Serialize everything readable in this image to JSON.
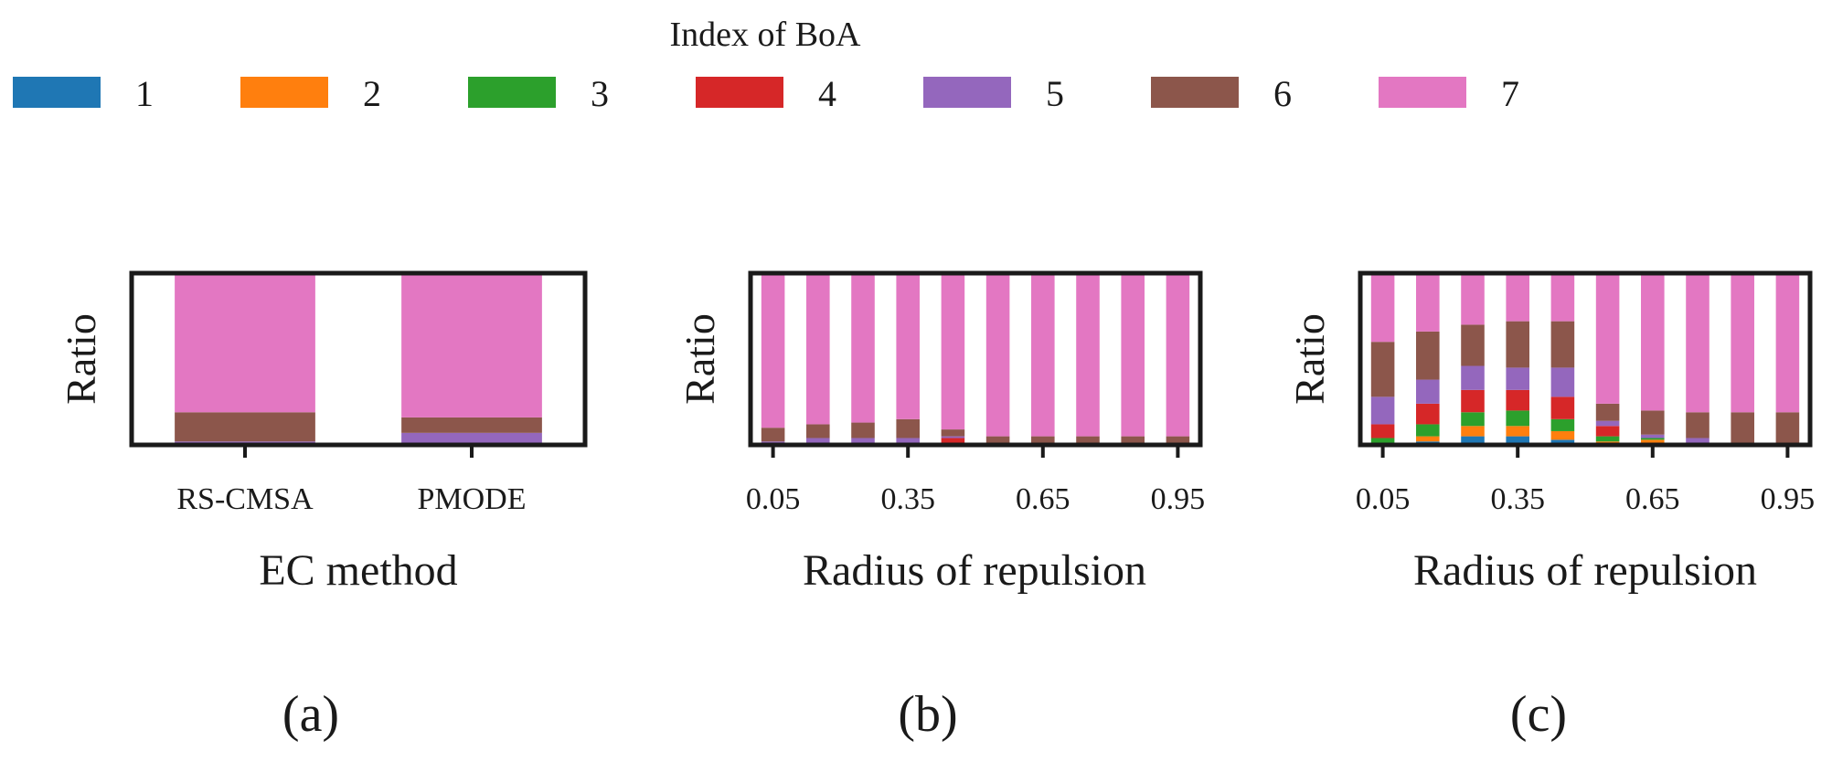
{
  "legend": {
    "title": "Index of BoA",
    "entries": [
      {
        "label": "1",
        "color": "#1f77b4"
      },
      {
        "label": "2",
        "color": "#ff7f0e"
      },
      {
        "label": "3",
        "color": "#2ca02c"
      },
      {
        "label": "4",
        "color": "#d62728"
      },
      {
        "label": "5",
        "color": "#9467bd"
      },
      {
        "label": "6",
        "color": "#8c564b"
      },
      {
        "label": "7",
        "color": "#e377c2"
      }
    ]
  },
  "chart_data": [
    {
      "type": "bar",
      "stacked": true,
      "panel_label": "(a)",
      "title": "",
      "xlabel": "EC method",
      "ylabel": "Ratio",
      "ylim": [
        0,
        1
      ],
      "categories": [
        "RS-CMSA",
        "PMODE"
      ],
      "tick_labels": [
        "RS-CMSA",
        "PMODE"
      ],
      "series": [
        {
          "name": "1",
          "values": [
            0.0,
            0.0
          ]
        },
        {
          "name": "2",
          "values": [
            0.0,
            0.0
          ]
        },
        {
          "name": "3",
          "values": [
            0.0,
            0.0
          ]
        },
        {
          "name": "4",
          "values": [
            0.0,
            0.01
          ]
        },
        {
          "name": "5",
          "values": [
            0.02,
            0.06
          ]
        },
        {
          "name": "6",
          "values": [
            0.17,
            0.09
          ]
        },
        {
          "name": "7",
          "values": [
            0.81,
            0.84
          ]
        }
      ]
    },
    {
      "type": "bar",
      "stacked": true,
      "panel_label": "(b)",
      "title": "",
      "xlabel": "Radius of repulsion",
      "ylabel": "Ratio",
      "ylim": [
        0,
        1
      ],
      "categories": [
        "0.05",
        "0.15",
        "0.25",
        "0.35",
        "0.45",
        "0.55",
        "0.65",
        "0.75",
        "0.85",
        "0.95"
      ],
      "tick_labels": [
        "0.05",
        "0.35",
        "0.65",
        "0.95"
      ],
      "series": [
        {
          "name": "1",
          "values": [
            0,
            0,
            0,
            0,
            0,
            0,
            0,
            0,
            0,
            0
          ]
        },
        {
          "name": "2",
          "values": [
            0,
            0,
            0,
            0,
            0,
            0,
            0,
            0,
            0,
            0
          ]
        },
        {
          "name": "3",
          "values": [
            0,
            0,
            0,
            0,
            0,
            0,
            0,
            0,
            0,
            0
          ]
        },
        {
          "name": "4",
          "values": [
            0,
            0,
            0,
            0,
            0.04,
            0,
            0,
            0,
            0,
            0
          ]
        },
        {
          "name": "5",
          "values": [
            0.02,
            0.04,
            0.04,
            0.04,
            0.01,
            0,
            0,
            0,
            0,
            0
          ]
        },
        {
          "name": "6",
          "values": [
            0.08,
            0.08,
            0.09,
            0.11,
            0.04,
            0.05,
            0.05,
            0.05,
            0.05,
            0.05
          ]
        },
        {
          "name": "7",
          "values": [
            0.9,
            0.88,
            0.87,
            0.85,
            0.91,
            0.95,
            0.95,
            0.95,
            0.95,
            0.95
          ]
        }
      ]
    },
    {
      "type": "bar",
      "stacked": true,
      "panel_label": "(c)",
      "title": "",
      "xlabel": "Radius of repulsion",
      "ylabel": "Ratio",
      "ylim": [
        0,
        1
      ],
      "categories": [
        "0.05",
        "0.15",
        "0.25",
        "0.35",
        "0.45",
        "0.55",
        "0.65",
        "0.75",
        "0.85",
        "0.95"
      ],
      "tick_labels": [
        "0.05",
        "0.35",
        "0.65",
        "0.95"
      ],
      "series": [
        {
          "name": "1",
          "values": [
            0.0,
            0.02,
            0.05,
            0.05,
            0.03,
            0.01,
            0.01,
            0.0,
            0.0,
            0.0
          ]
        },
        {
          "name": "2",
          "values": [
            0.0,
            0.03,
            0.06,
            0.06,
            0.05,
            0.01,
            0.02,
            0.0,
            0.0,
            0.0
          ]
        },
        {
          "name": "3",
          "values": [
            0.04,
            0.07,
            0.08,
            0.09,
            0.07,
            0.03,
            0.01,
            0.0,
            0.0,
            0.0
          ]
        },
        {
          "name": "4",
          "values": [
            0.08,
            0.12,
            0.13,
            0.12,
            0.13,
            0.06,
            0.0,
            0.0,
            0.0,
            0.0
          ]
        },
        {
          "name": "5",
          "values": [
            0.16,
            0.14,
            0.14,
            0.13,
            0.17,
            0.03,
            0.02,
            0.04,
            0.01,
            0.0
          ]
        },
        {
          "name": "6",
          "values": [
            0.32,
            0.28,
            0.24,
            0.27,
            0.27,
            0.1,
            0.14,
            0.15,
            0.18,
            0.19
          ]
        },
        {
          "name": "7",
          "values": [
            0.4,
            0.34,
            0.3,
            0.28,
            0.28,
            0.76,
            0.8,
            0.81,
            0.81,
            0.81
          ]
        }
      ]
    }
  ]
}
